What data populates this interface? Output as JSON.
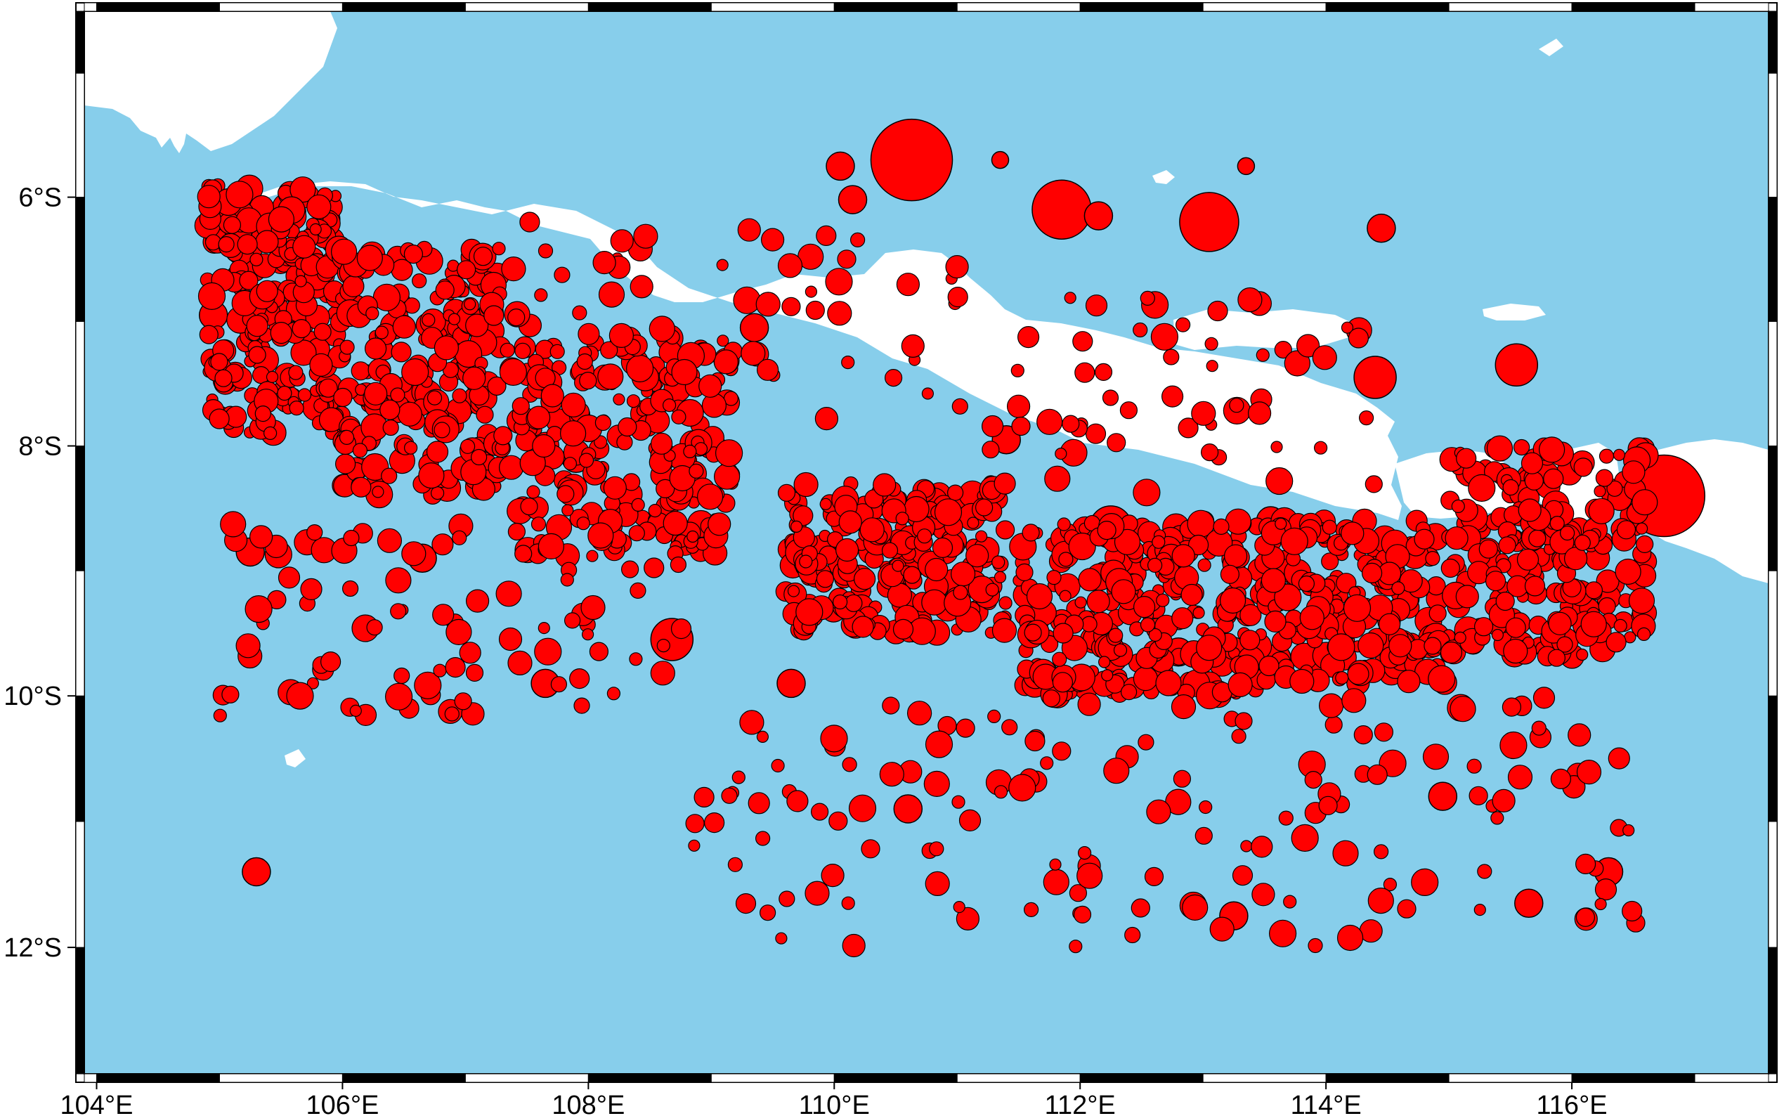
{
  "map": {
    "projection": "mercator",
    "lon_range": [
      103.9,
      117.6
    ],
    "lat_range": [
      -13.0,
      -4.5
    ],
    "colors": {
      "ocean": "#87ceeb",
      "land": "#ffffff",
      "marker_fill": "#ff0000",
      "marker_stroke": "#000000",
      "frame": "#000000"
    },
    "axes": {
      "x_ticks": [
        {
          "value": 104,
          "label": "104°E"
        },
        {
          "value": 106,
          "label": "106°E"
        },
        {
          "value": 108,
          "label": "108°E"
        },
        {
          "value": 110,
          "label": "110°E"
        },
        {
          "value": 112,
          "label": "112°E"
        },
        {
          "value": 114,
          "label": "114°E"
        },
        {
          "value": 116,
          "label": "116°E"
        }
      ],
      "y_ticks": [
        {
          "value": -6,
          "label": "6°S"
        },
        {
          "value": -8,
          "label": "8°S"
        },
        {
          "value": -10,
          "label": "10°S"
        },
        {
          "value": -12,
          "label": "12°S"
        }
      ]
    },
    "earthquakes": [
      {
        "lon": 110.63,
        "lat": -5.7,
        "size": 5
      },
      {
        "lon": 111.85,
        "lat": -6.1,
        "size": 4
      },
      {
        "lon": 113.05,
        "lat": -6.2,
        "size": 4
      },
      {
        "lon": 116.75,
        "lat": -8.4,
        "size": 5
      },
      {
        "lon": 114.4,
        "lat": -7.45,
        "size": 3
      },
      {
        "lon": 115.55,
        "lat": -7.35,
        "size": 3
      },
      {
        "lon": 112.25,
        "lat": -8.65,
        "size": 3
      },
      {
        "lon": 108.68,
        "lat": -9.55,
        "size": 3
      },
      {
        "lon": 110.15,
        "lat": -6.02,
        "size": 2
      },
      {
        "lon": 110.05,
        "lat": -5.75,
        "size": 2
      },
      {
        "lon": 112.15,
        "lat": -6.15,
        "size": 2
      },
      {
        "lon": 114.45,
        "lat": -6.25,
        "size": 2
      },
      {
        "lon": 111.35,
        "lat": -5.7,
        "size": 1
      },
      {
        "lon": 113.35,
        "lat": -5.75,
        "size": 1
      },
      {
        "lon": 110.7,
        "lat": -8.55,
        "size": 2
      },
      {
        "lon": 111.4,
        "lat": -7.95,
        "size": 2
      },
      {
        "lon": 113.55,
        "lat": -8.6,
        "size": 2
      },
      {
        "lon": 105.25,
        "lat": -8.85,
        "size": 2
      },
      {
        "lon": 105.3,
        "lat": -11.4,
        "size": 2
      },
      {
        "lon": 104.95,
        "lat": -6.95,
        "size": 2
      },
      {
        "lon": 106.1,
        "lat": -6.9,
        "size": 2
      },
      {
        "lon": 106.6,
        "lat": -7.55,
        "size": 2
      },
      {
        "lon": 107.9,
        "lat": -8.1,
        "size": 2
      },
      {
        "lon": 109.35,
        "lat": -7.05,
        "size": 2
      },
      {
        "lon": 109.65,
        "lat": -9.9,
        "size": 2
      },
      {
        "lon": 110.6,
        "lat": -10.9,
        "size": 2
      },
      {
        "lon": 113.25,
        "lat": -11.75,
        "size": 2
      },
      {
        "lon": 114.95,
        "lat": -10.8,
        "size": 2
      },
      {
        "lon": 115.65,
        "lat": -11.65,
        "size": 2
      },
      {
        "lon": 116.3,
        "lat": -11.4,
        "size": 2
      },
      {
        "lon": 113.6,
        "lat": -9.7,
        "size": 2
      },
      {
        "lon": 112.8,
        "lat": -9.65,
        "size": 2
      },
      {
        "lon": 107.65,
        "lat": -9.9,
        "size": 2
      },
      {
        "lon": 106.65,
        "lat": -8.9,
        "size": 2
      }
    ]
  }
}
